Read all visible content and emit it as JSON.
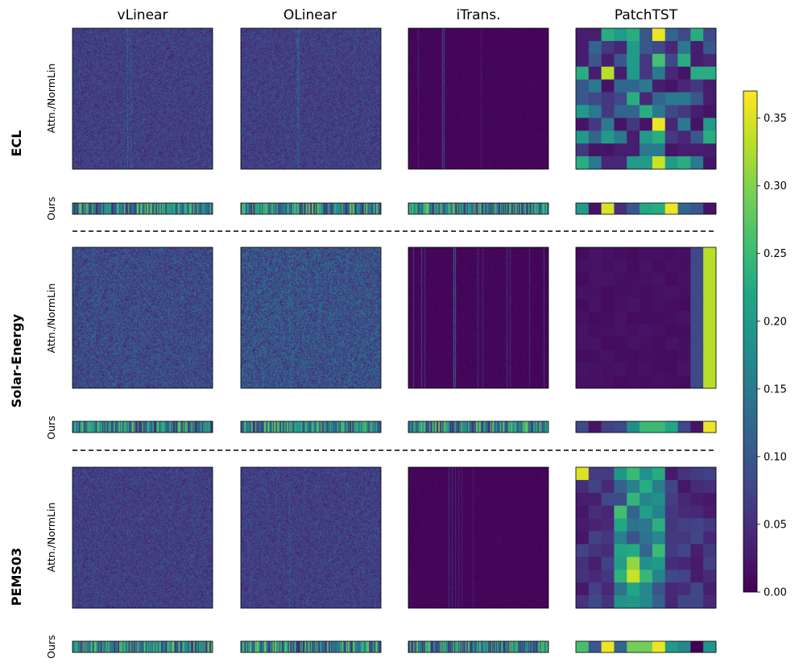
{
  "chart_data": {
    "type": "heatmap",
    "columns": [
      "vLinear",
      "OLinear",
      "iTrans.",
      "PatchTST"
    ],
    "datasets": [
      "ECL",
      "Solar-Energy",
      "PEMS03"
    ],
    "row_labels": {
      "matrix": "Attn./NormLin",
      "vector": "Ours"
    },
    "colorbar": {
      "colormap": "viridis",
      "range": [
        0.0,
        0.37
      ],
      "ticks": [
        0.0,
        0.05,
        0.1,
        0.15,
        0.2,
        0.25,
        0.3,
        0.35
      ],
      "tick_labels": [
        "0.00",
        "0.05",
        "0.10",
        "0.15",
        "0.20",
        "0.25",
        "0.30",
        "0.35"
      ]
    },
    "patchtst_ours": {
      "ECL": [
        0.2,
        0.02,
        0.35,
        0.05,
        0.1,
        0.22,
        0.23,
        0.36,
        0.12,
        0.1,
        0.02
      ],
      "Solar-Energy": [
        0.08,
        0.02,
        0.07,
        0.08,
        0.18,
        0.25,
        0.25,
        0.22,
        0.08,
        0.02,
        0.36
      ],
      "PEMS03": [
        0.26,
        0.1,
        0.36,
        0.12,
        0.29,
        0.29,
        0.36,
        0.2,
        0.17,
        0.0,
        0.19
      ]
    },
    "patchtst_matrix_solar_last_columns": [
      0.09,
      0.33
    ],
    "patchtst_matrix_pems03_bright_cells": [
      {
        "row": 0,
        "col": 0,
        "value": 0.35
      },
      {
        "row": 8,
        "col": 4,
        "value": 0.34
      },
      {
        "row": 7,
        "col": 4,
        "value": 0.31
      }
    ]
  }
}
